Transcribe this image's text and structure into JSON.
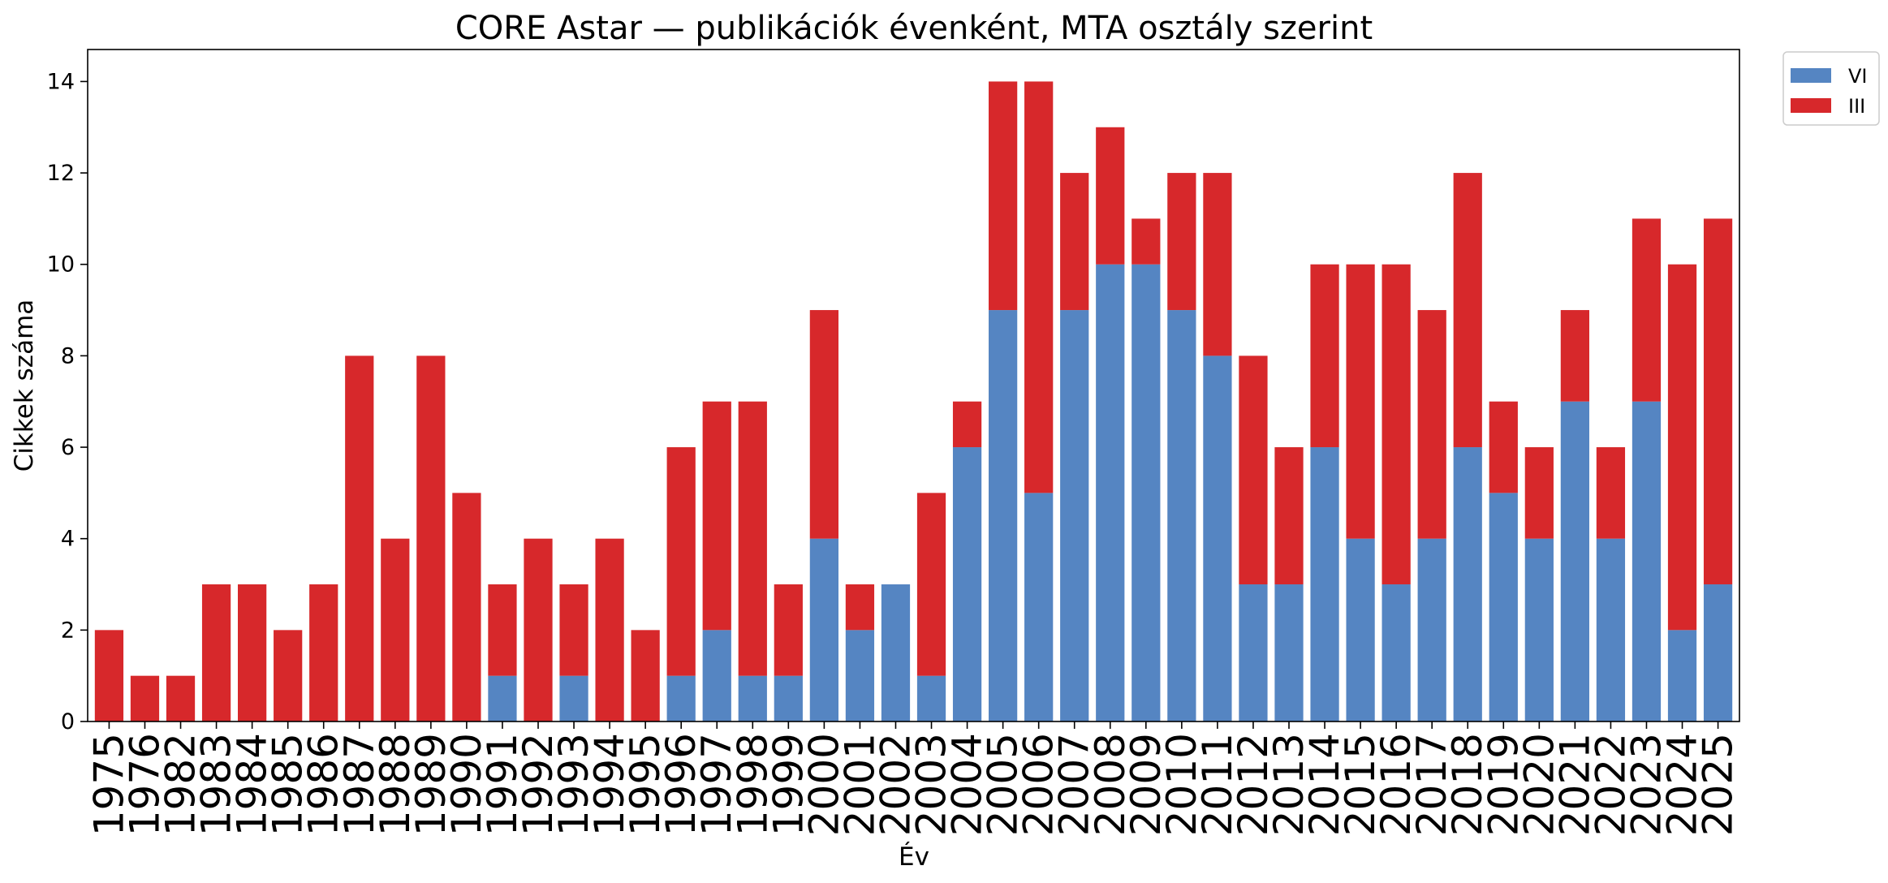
{
  "chart_data": {
    "type": "bar",
    "stacked": true,
    "title": "CORE Astar — publikációk évenként, MTA osztály szerint",
    "xlabel": "Év",
    "ylabel": "Cikkek száma",
    "ylim": [
      0,
      14.7
    ],
    "yticks": [
      0,
      2,
      4,
      6,
      8,
      10,
      12,
      14
    ],
    "grid": false,
    "legend_position": "outside-top-right",
    "categories": [
      "1975",
      "1976",
      "1982",
      "1983",
      "1984",
      "1985",
      "1986",
      "1987",
      "1988",
      "1989",
      "1990",
      "1991",
      "1992",
      "1993",
      "1994",
      "1995",
      "1996",
      "1997",
      "1998",
      "1999",
      "2000",
      "2001",
      "2002",
      "2003",
      "2004",
      "2005",
      "2006",
      "2007",
      "2008",
      "2009",
      "2010",
      "2011",
      "2012",
      "2013",
      "2014",
      "2015",
      "2016",
      "2017",
      "2018",
      "2019",
      "2020",
      "2021",
      "2022",
      "2023",
      "2024",
      "2025"
    ],
    "series": [
      {
        "name": "VI",
        "color": "#5585c2",
        "values": [
          0,
          0,
          0,
          0,
          0,
          0,
          0,
          0,
          0,
          0,
          0,
          1,
          0,
          1,
          0,
          0,
          1,
          2,
          1,
          1,
          4,
          2,
          3,
          1,
          6,
          9,
          5,
          9,
          10,
          10,
          9,
          8,
          3,
          3,
          6,
          4,
          3,
          4,
          6,
          5,
          4,
          7,
          4,
          7,
          2,
          3
        ]
      },
      {
        "name": "III",
        "color": "#d7282b",
        "values": [
          2,
          1,
          1,
          3,
          3,
          2,
          3,
          8,
          4,
          8,
          5,
          2,
          4,
          2,
          4,
          2,
          5,
          5,
          6,
          2,
          5,
          1,
          0,
          4,
          1,
          5,
          9,
          3,
          3,
          1,
          3,
          4,
          5,
          3,
          4,
          6,
          7,
          5,
          6,
          2,
          2,
          2,
          2,
          4,
          8,
          8
        ]
      }
    ]
  }
}
